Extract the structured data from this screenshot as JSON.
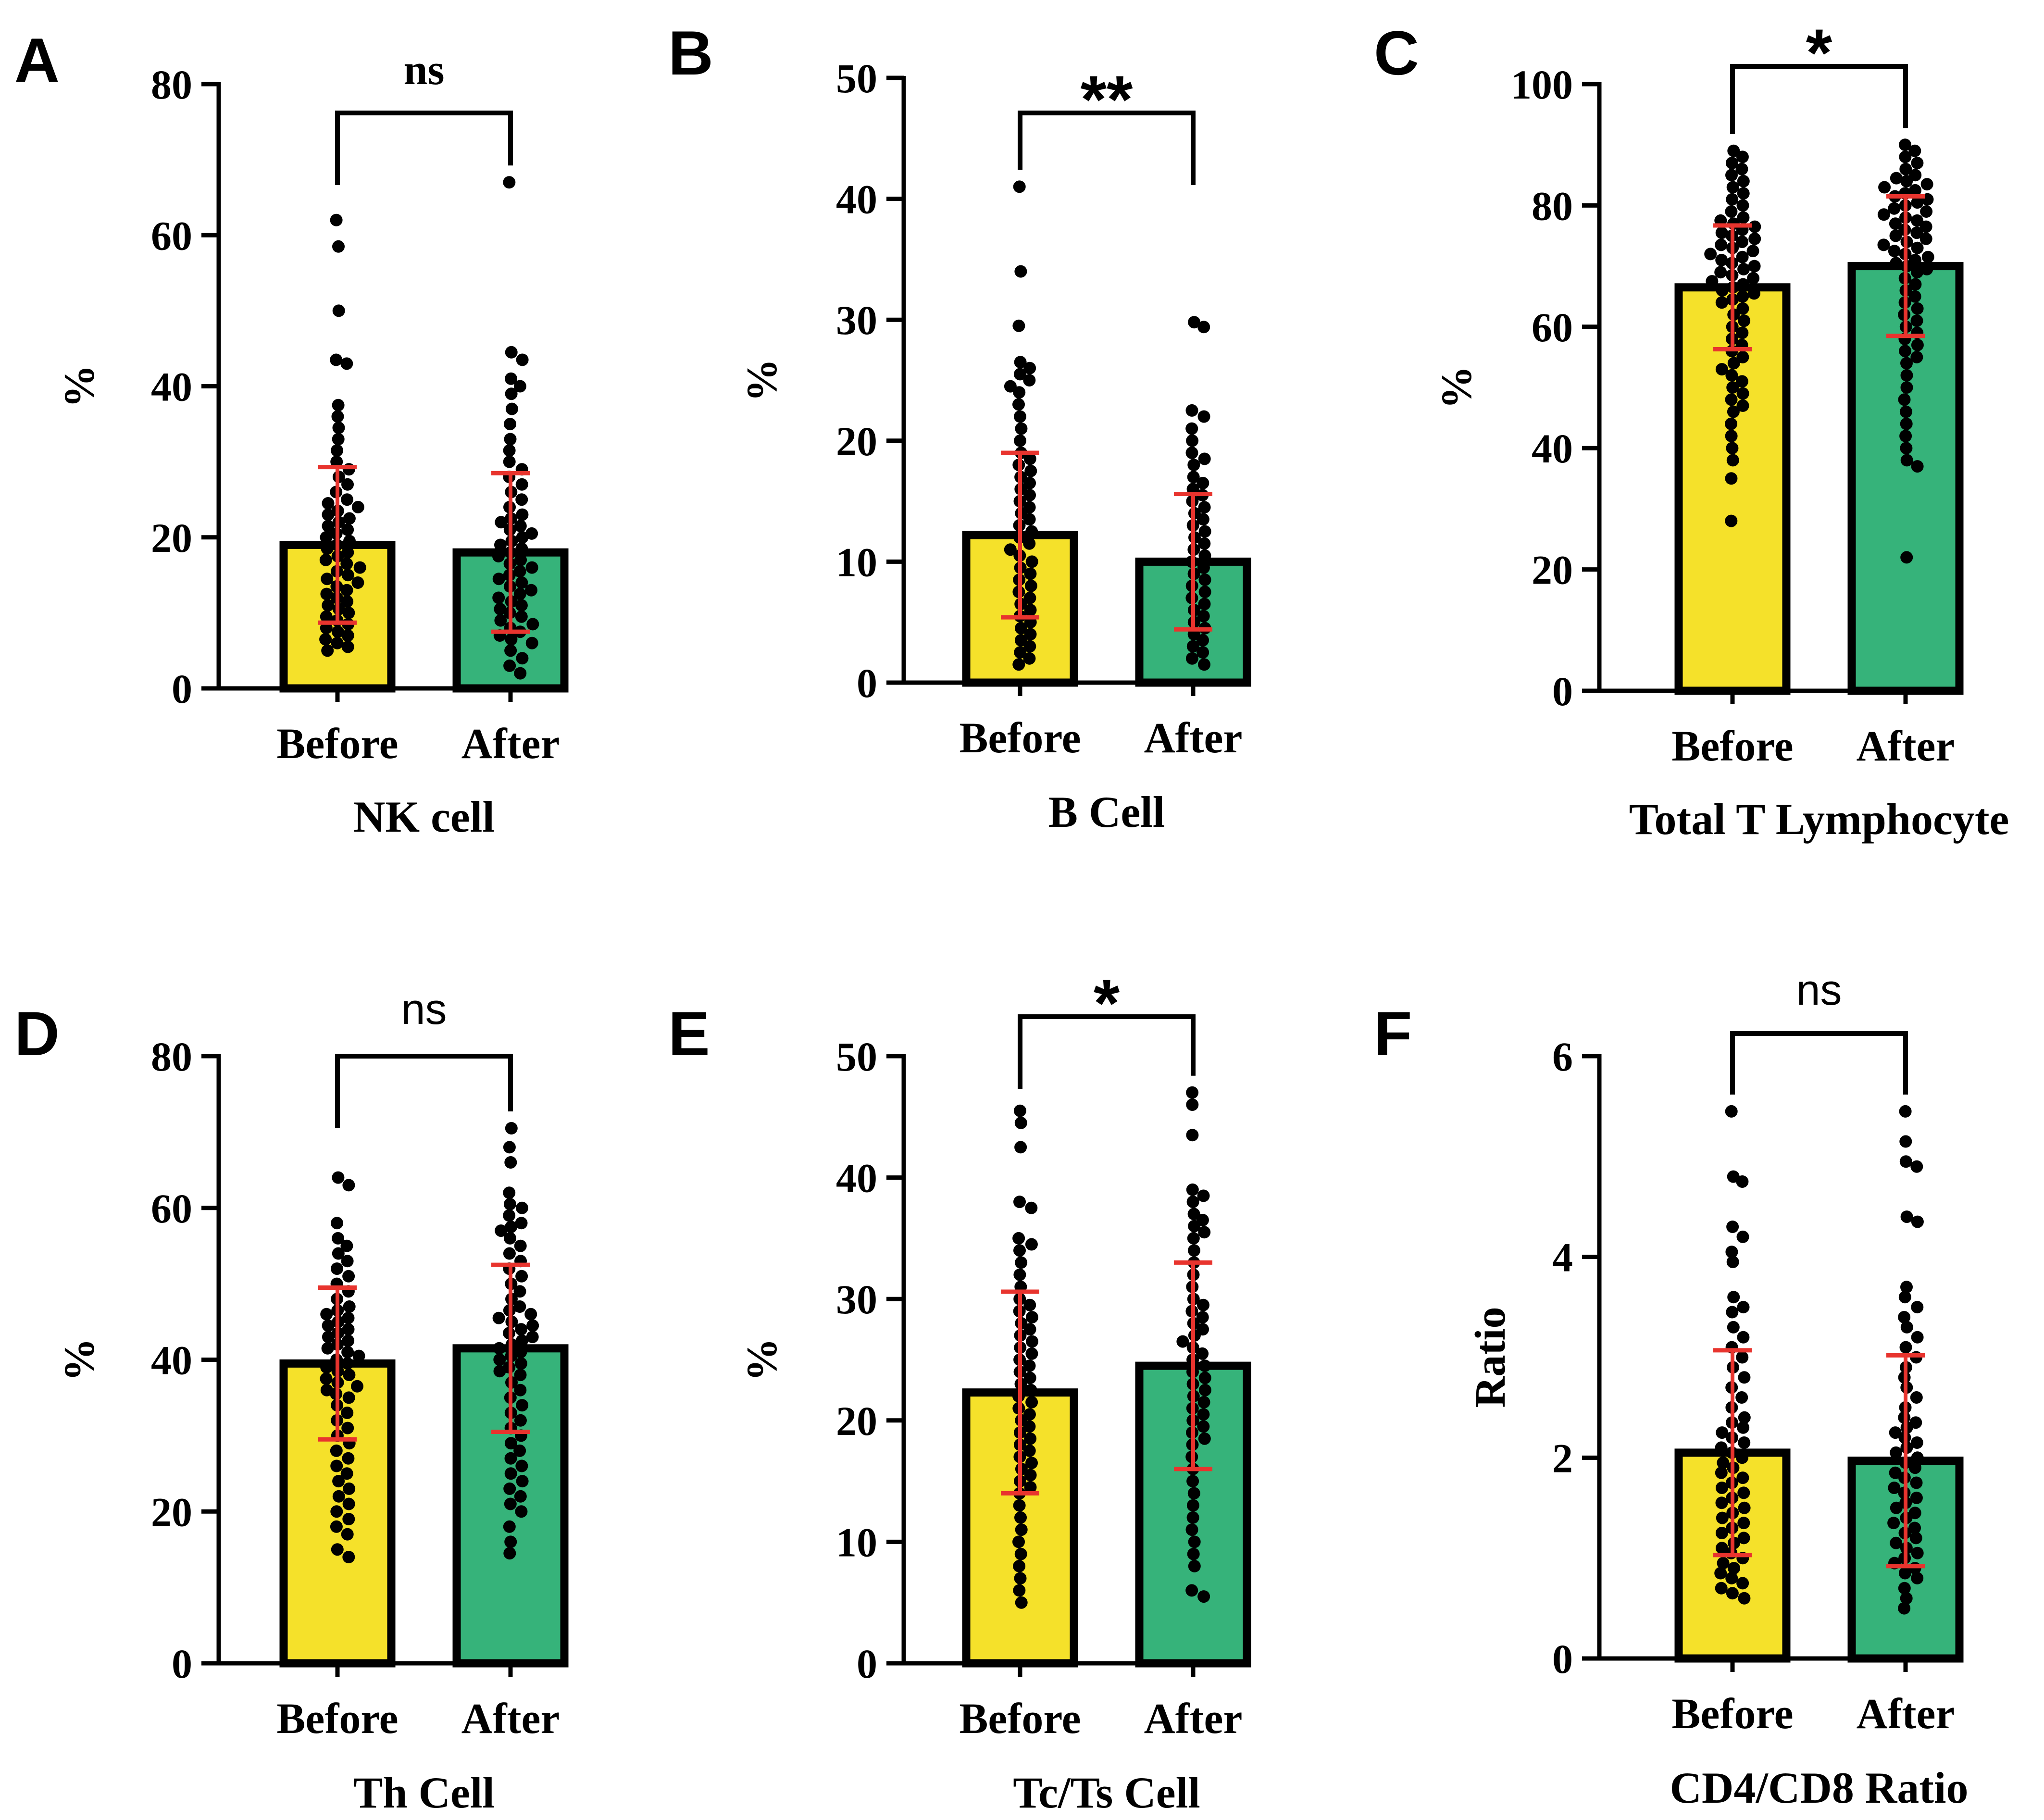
{
  "figure": {
    "background": "#ffffff"
  },
  "colors": {
    "before": "#f5e12a",
    "after": "#36b37a",
    "error": "#e8342e",
    "dot": "#000000",
    "axis": "#000000"
  },
  "chart_data": [
    {
      "panel": "A",
      "type": "bar",
      "title": "NK cell",
      "xlabel": "NK cell",
      "ylabel": "%",
      "ylim": [
        0,
        80
      ],
      "yticks": [
        "0",
        "20",
        "40",
        "60",
        "80"
      ],
      "categories": [
        "Before",
        "After"
      ],
      "series": [
        {
          "name": "Before",
          "mean": 19,
          "sd": 10.3,
          "points": [
            62,
            58.5,
            50,
            43.5,
            43,
            37.5,
            36,
            34.5,
            33,
            31.5,
            30,
            29,
            28,
            27,
            26,
            25,
            24.5,
            24,
            23.5,
            23,
            22.5,
            22,
            21.5,
            21,
            20.5,
            20,
            19.5,
            19,
            18.5,
            18,
            17.5,
            17,
            16.5,
            16,
            15.5,
            15,
            14.5,
            14,
            13.5,
            13,
            12.5,
            12,
            11.5,
            11,
            10.5,
            10,
            9.5,
            9,
            8.5,
            8,
            7.5,
            7,
            6.5,
            6,
            5.5,
            5
          ]
        },
        {
          "name": "After",
          "mean": 18,
          "sd": 10.5,
          "points": [
            67,
            44.5,
            43.5,
            41,
            40,
            39,
            37,
            35,
            33,
            31.5,
            30,
            29,
            28,
            27,
            26,
            25,
            24,
            23,
            22.5,
            22,
            21.5,
            21,
            20.5,
            20,
            19.5,
            19,
            18.5,
            18,
            17.5,
            17,
            16.5,
            16,
            15.5,
            15,
            14.5,
            14,
            13.5,
            13,
            12.5,
            12,
            11.5,
            11,
            10.5,
            10,
            9.5,
            9,
            8.5,
            8,
            7.5,
            7,
            6.5,
            6,
            5,
            4,
            3,
            2
          ]
        }
      ],
      "significance": "ns",
      "sig_style": "serif"
    },
    {
      "panel": "B",
      "type": "bar",
      "title": "B Cell",
      "xlabel": "B Cell",
      "ylabel": "%",
      "ylim": [
        0,
        50
      ],
      "yticks": [
        "0",
        "10",
        "20",
        "30",
        "40",
        "50"
      ],
      "categories": [
        "Before",
        "After"
      ],
      "series": [
        {
          "name": "Before",
          "mean": 12.2,
          "sd": 6.8,
          "points": [
            41,
            34,
            29.5,
            26.5,
            26,
            25.5,
            25,
            24.5,
            24,
            23,
            22,
            21,
            20,
            19,
            18.5,
            18,
            17.5,
            17,
            16.5,
            16,
            15.5,
            15,
            14.5,
            14,
            13.5,
            13,
            12.5,
            12,
            11.5,
            11,
            10.5,
            10,
            9.5,
            9,
            8.5,
            8,
            7.5,
            7,
            6.5,
            6,
            5.5,
            5,
            4.5,
            4,
            3.5,
            3,
            2.5,
            2,
            1.5
          ]
        },
        {
          "name": "After",
          "mean": 10,
          "sd": 5.6,
          "points": [
            29.8,
            29.4,
            22.5,
            22,
            21,
            20,
            19,
            18.5,
            18,
            17,
            16.5,
            16,
            15.5,
            15,
            14.5,
            14,
            13.5,
            13,
            12.5,
            12,
            11.5,
            11,
            10.5,
            10,
            9.5,
            9,
            8.5,
            8,
            7.5,
            7,
            6.5,
            6,
            5.5,
            5,
            4.5,
            4,
            3.5,
            3,
            2.5,
            2,
            1.5
          ]
        }
      ],
      "significance": "**",
      "sig_style": "sans"
    },
    {
      "panel": "C",
      "type": "bar",
      "title": "Total T Lymphocyte",
      "xlabel": "Total T Lymphocyte",
      "ylabel": "%",
      "ylim": [
        0,
        100
      ],
      "yticks": [
        "0",
        "20",
        "40",
        "60",
        "80",
        "100"
      ],
      "categories": [
        "Before",
        "After"
      ],
      "series": [
        {
          "name": "Before",
          "mean": 66.5,
          "sd": 10.2,
          "points": [
            89,
            88,
            87,
            86,
            85,
            84,
            83,
            82,
            81,
            80,
            79,
            78,
            77.5,
            77,
            76.5,
            76,
            75.5,
            75,
            74.5,
            74,
            73.5,
            73,
            72.5,
            72,
            71.5,
            71,
            70.5,
            70,
            69.5,
            69,
            68.5,
            68,
            67.5,
            67,
            66.5,
            66,
            65.5,
            65,
            64.5,
            64,
            63,
            62,
            61,
            60,
            59,
            58,
            57,
            56,
            55,
            54,
            53,
            52,
            51,
            50,
            49,
            48,
            47,
            46,
            44,
            42,
            40,
            38,
            35,
            28
          ]
        },
        {
          "name": "After",
          "mean": 70,
          "sd": 11.5,
          "points": [
            90,
            89,
            88,
            87,
            86,
            85,
            84.5,
            84,
            83.5,
            83,
            82.5,
            82,
            81.5,
            81,
            80.5,
            80,
            79.5,
            79,
            78.5,
            78,
            77.5,
            77,
            76.5,
            76,
            75.5,
            75,
            74.5,
            74,
            73.5,
            73,
            72.5,
            72,
            71.5,
            71,
            70.5,
            70,
            69.5,
            69,
            68,
            67,
            66,
            65,
            64,
            63,
            62,
            61,
            60,
            59,
            58,
            57,
            56,
            55,
            54,
            52,
            50,
            48,
            46,
            44,
            42,
            40,
            38,
            37,
            22
          ]
        }
      ],
      "significance": "*",
      "sig_style": "sans"
    },
    {
      "panel": "D",
      "type": "bar",
      "title": "Th Cell",
      "xlabel": "Th Cell",
      "ylabel": "%",
      "ylim": [
        0,
        80
      ],
      "yticks": [
        "0",
        "20",
        "40",
        "60",
        "80"
      ],
      "categories": [
        "Before",
        "After"
      ],
      "series": [
        {
          "name": "Before",
          "mean": 39.5,
          "sd": 10,
          "points": [
            64,
            63,
            58,
            56,
            55,
            54,
            53,
            52,
            51,
            50,
            49,
            48,
            47,
            46.5,
            46,
            45.5,
            45,
            44.5,
            44,
            43.5,
            43,
            42.5,
            42,
            41.5,
            41,
            40.5,
            40,
            39.5,
            39,
            38.5,
            38,
            37.5,
            37,
            36.5,
            36,
            35.5,
            35,
            34,
            33,
            32,
            31,
            30,
            29,
            28,
            27,
            26,
            25,
            24,
            23,
            22,
            21,
            20,
            19,
            18,
            17,
            15,
            14
          ]
        },
        {
          "name": "After",
          "mean": 41.5,
          "sd": 11,
          "points": [
            70.5,
            68,
            66,
            62,
            60.5,
            60,
            59,
            58,
            57.5,
            57,
            56,
            55,
            54,
            53,
            52,
            51,
            50,
            49,
            48,
            47,
            46.5,
            46,
            45.5,
            45,
            44.5,
            44,
            43.5,
            43,
            42.5,
            42,
            41.5,
            41,
            40.5,
            40,
            39.5,
            39,
            38.5,
            38,
            37,
            36,
            35,
            34,
            33,
            32,
            31,
            30,
            29,
            28,
            27,
            26,
            25,
            24,
            23,
            22,
            21,
            20,
            18,
            16,
            14.5
          ]
        }
      ],
      "significance": "ns",
      "sig_style": "sans"
    },
    {
      "panel": "E",
      "type": "bar",
      "title": "Tc/Ts Cell",
      "xlabel": "Tc/Ts Cell",
      "ylabel": "%",
      "ylim": [
        0,
        50
      ],
      "yticks": [
        "0",
        "10",
        "20",
        "30",
        "40",
        "50"
      ],
      "categories": [
        "Before",
        "After"
      ],
      "series": [
        {
          "name": "Before",
          "mean": 22.3,
          "sd": 8.3,
          "points": [
            45.5,
            44.5,
            42.5,
            38,
            37.5,
            35,
            34.5,
            34,
            33,
            32,
            31,
            30,
            29.5,
            29,
            28.5,
            28,
            27.5,
            27,
            26.5,
            26,
            25.5,
            25,
            24.5,
            24,
            23.5,
            23,
            22.5,
            22,
            21.5,
            21,
            20.5,
            20,
            19.5,
            19,
            18.5,
            18,
            17.5,
            17,
            16.5,
            16,
            15.5,
            15,
            14.5,
            14,
            13,
            12,
            11,
            10,
            9,
            8,
            7,
            6,
            5
          ]
        },
        {
          "name": "After",
          "mean": 24.5,
          "sd": 8.5,
          "points": [
            47,
            46,
            43.5,
            39,
            38.5,
            38,
            37,
            36.5,
            36,
            35.5,
            35,
            34,
            33,
            32,
            31,
            30,
            29.5,
            29,
            28.5,
            28,
            27.5,
            27,
            26.5,
            26,
            25.5,
            25,
            24.5,
            24,
            23.5,
            23,
            22.5,
            22,
            21.5,
            21,
            20.5,
            20,
            19.5,
            19,
            18.5,
            18,
            17,
            16,
            15,
            14,
            13,
            12,
            11,
            10,
            9,
            8,
            6,
            5.5
          ]
        }
      ],
      "significance": "*",
      "sig_style": "sans"
    },
    {
      "panel": "F",
      "type": "bar",
      "title": "CD4/CD8 Ratio",
      "xlabel": "CD4/CD8 Ratio",
      "ylabel": "Ratio",
      "ylim": [
        0,
        6
      ],
      "yticks": [
        "0",
        "2",
        "4",
        "6"
      ],
      "categories": [
        "Before",
        "After"
      ],
      "series": [
        {
          "name": "Before",
          "mean": 2.05,
          "sd": 1.02,
          "points": [
            5.45,
            4.8,
            4.75,
            4.3,
            4.2,
            4.05,
            3.95,
            3.6,
            3.5,
            3.45,
            3.3,
            3.2,
            3.1,
            3.0,
            2.9,
            2.8,
            2.7,
            2.6,
            2.5,
            2.4,
            2.35,
            2.3,
            2.25,
            2.2,
            2.15,
            2.1,
            2.05,
            2.0,
            1.95,
            1.9,
            1.85,
            1.8,
            1.75,
            1.7,
            1.65,
            1.6,
            1.55,
            1.5,
            1.45,
            1.4,
            1.35,
            1.3,
            1.25,
            1.2,
            1.15,
            1.1,
            1.05,
            1.0,
            0.95,
            0.9,
            0.85,
            0.8,
            0.75,
            0.7,
            0.65,
            0.6
          ]
        },
        {
          "name": "After",
          "mean": 1.97,
          "sd": 1.05,
          "points": [
            5.45,
            5.15,
            4.95,
            4.9,
            4.4,
            4.35,
            3.7,
            3.6,
            3.5,
            3.4,
            3.3,
            3.2,
            3.1,
            3.0,
            2.9,
            2.8,
            2.7,
            2.6,
            2.5,
            2.4,
            2.35,
            2.3,
            2.25,
            2.2,
            2.15,
            2.1,
            2.05,
            2.0,
            1.95,
            1.9,
            1.85,
            1.8,
            1.75,
            1.7,
            1.65,
            1.6,
            1.55,
            1.5,
            1.45,
            1.4,
            1.35,
            1.3,
            1.25,
            1.2,
            1.15,
            1.1,
            1.05,
            1.0,
            0.95,
            0.9,
            0.85,
            0.8,
            0.7,
            0.6,
            0.5
          ]
        }
      ],
      "significance": "ns",
      "sig_style": "sans"
    }
  ]
}
